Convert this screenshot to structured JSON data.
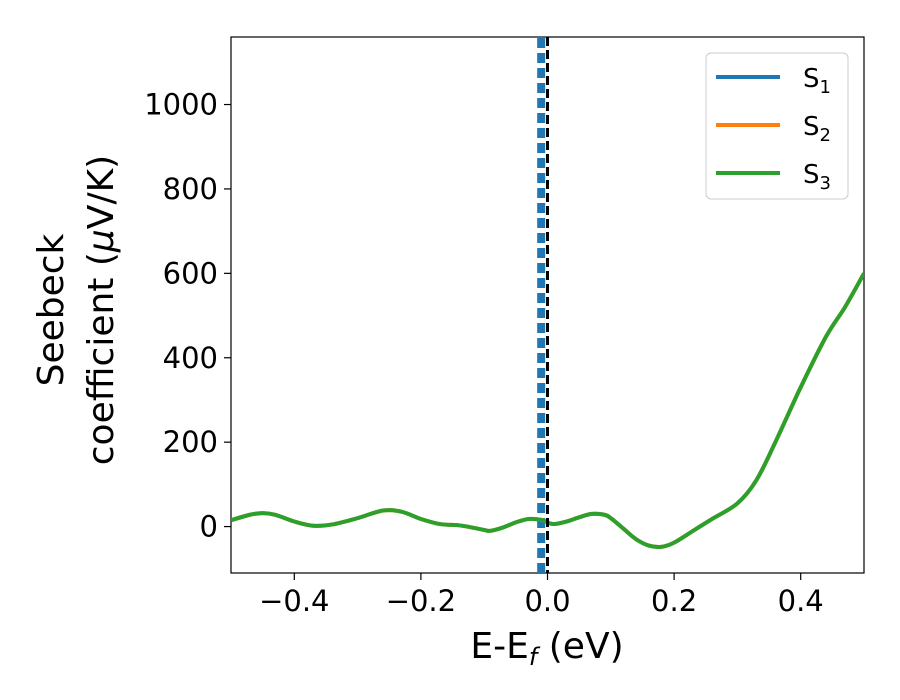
{
  "chart_data": {
    "type": "line",
    "xlabel": {
      "main": "E-E",
      "sub": "f",
      "unit": " (eV)"
    },
    "ylabel": {
      "line1": "Seebeck",
      "line2_prefix": "coefficient  (",
      "mu": "μ",
      "line2_suffix": "V/K)"
    },
    "xlim": [
      -0.5,
      0.5
    ],
    "ylim": [
      -110,
      1160
    ],
    "xticks": [
      {
        "value": -0.4,
        "label": "−0.4"
      },
      {
        "value": -0.2,
        "label": "−0.2"
      },
      {
        "value": 0.0,
        "label": "0.0"
      },
      {
        "value": 0.2,
        "label": "0.2"
      },
      {
        "value": 0.4,
        "label": "0.4"
      }
    ],
    "yticks": [
      {
        "value": 0,
        "label": "0"
      },
      {
        "value": 200,
        "label": "200"
      },
      {
        "value": 400,
        "label": "400"
      },
      {
        "value": 600,
        "label": "600"
      },
      {
        "value": 800,
        "label": "800"
      },
      {
        "value": 1000,
        "label": "1000"
      }
    ],
    "grid": false,
    "legend_position": "top-right",
    "fermi_line_x": 0.0,
    "series": [
      {
        "name": {
          "base": "S",
          "sub": "1"
        },
        "color": "#1f77b4",
        "style": "vertical-dashed",
        "x": [
          -0.01,
          -0.01
        ],
        "y": [
          -110,
          1160
        ]
      },
      {
        "name": {
          "base": "S",
          "sub": "2"
        },
        "color": "#ff7f0e",
        "style": "hidden-under-S3",
        "x": [
          -0.5,
          -0.47,
          -0.45,
          -0.43,
          -0.4,
          -0.37,
          -0.34,
          -0.3,
          -0.26,
          -0.23,
          -0.2,
          -0.17,
          -0.14,
          -0.12,
          -0.1,
          -0.09,
          -0.07,
          -0.05,
          -0.03,
          -0.01,
          0.0,
          0.01,
          0.03,
          0.05,
          0.07,
          0.09,
          0.1,
          0.12,
          0.14,
          0.16,
          0.18,
          0.2,
          0.23,
          0.26,
          0.3,
          0.33,
          0.36,
          0.4,
          0.44,
          0.47,
          0.5
        ],
        "y": [
          15,
          28,
          32,
          28,
          12,
          2,
          5,
          20,
          38,
          35,
          18,
          6,
          3,
          -2,
          -8,
          -10,
          -2,
          10,
          18,
          16,
          10,
          6,
          12,
          22,
          30,
          28,
          20,
          -5,
          -30,
          -45,
          -48,
          -38,
          -10,
          18,
          55,
          110,
          200,
          330,
          450,
          520,
          600
        ]
      },
      {
        "name": {
          "base": "S",
          "sub": "3"
        },
        "color": "#2ca02c",
        "style": "solid",
        "x": [
          -0.5,
          -0.47,
          -0.45,
          -0.43,
          -0.4,
          -0.37,
          -0.34,
          -0.3,
          -0.26,
          -0.23,
          -0.2,
          -0.17,
          -0.14,
          -0.12,
          -0.1,
          -0.09,
          -0.07,
          -0.05,
          -0.03,
          -0.01,
          0.0,
          0.01,
          0.03,
          0.05,
          0.07,
          0.09,
          0.1,
          0.12,
          0.14,
          0.16,
          0.18,
          0.2,
          0.23,
          0.26,
          0.3,
          0.33,
          0.36,
          0.4,
          0.44,
          0.47,
          0.5
        ],
        "y": [
          15,
          28,
          32,
          28,
          12,
          2,
          5,
          20,
          38,
          35,
          18,
          6,
          3,
          -2,
          -8,
          -10,
          -2,
          10,
          18,
          16,
          10,
          6,
          12,
          22,
          30,
          28,
          20,
          -5,
          -30,
          -45,
          -48,
          -38,
          -10,
          18,
          55,
          110,
          200,
          330,
          450,
          520,
          600
        ]
      }
    ]
  }
}
